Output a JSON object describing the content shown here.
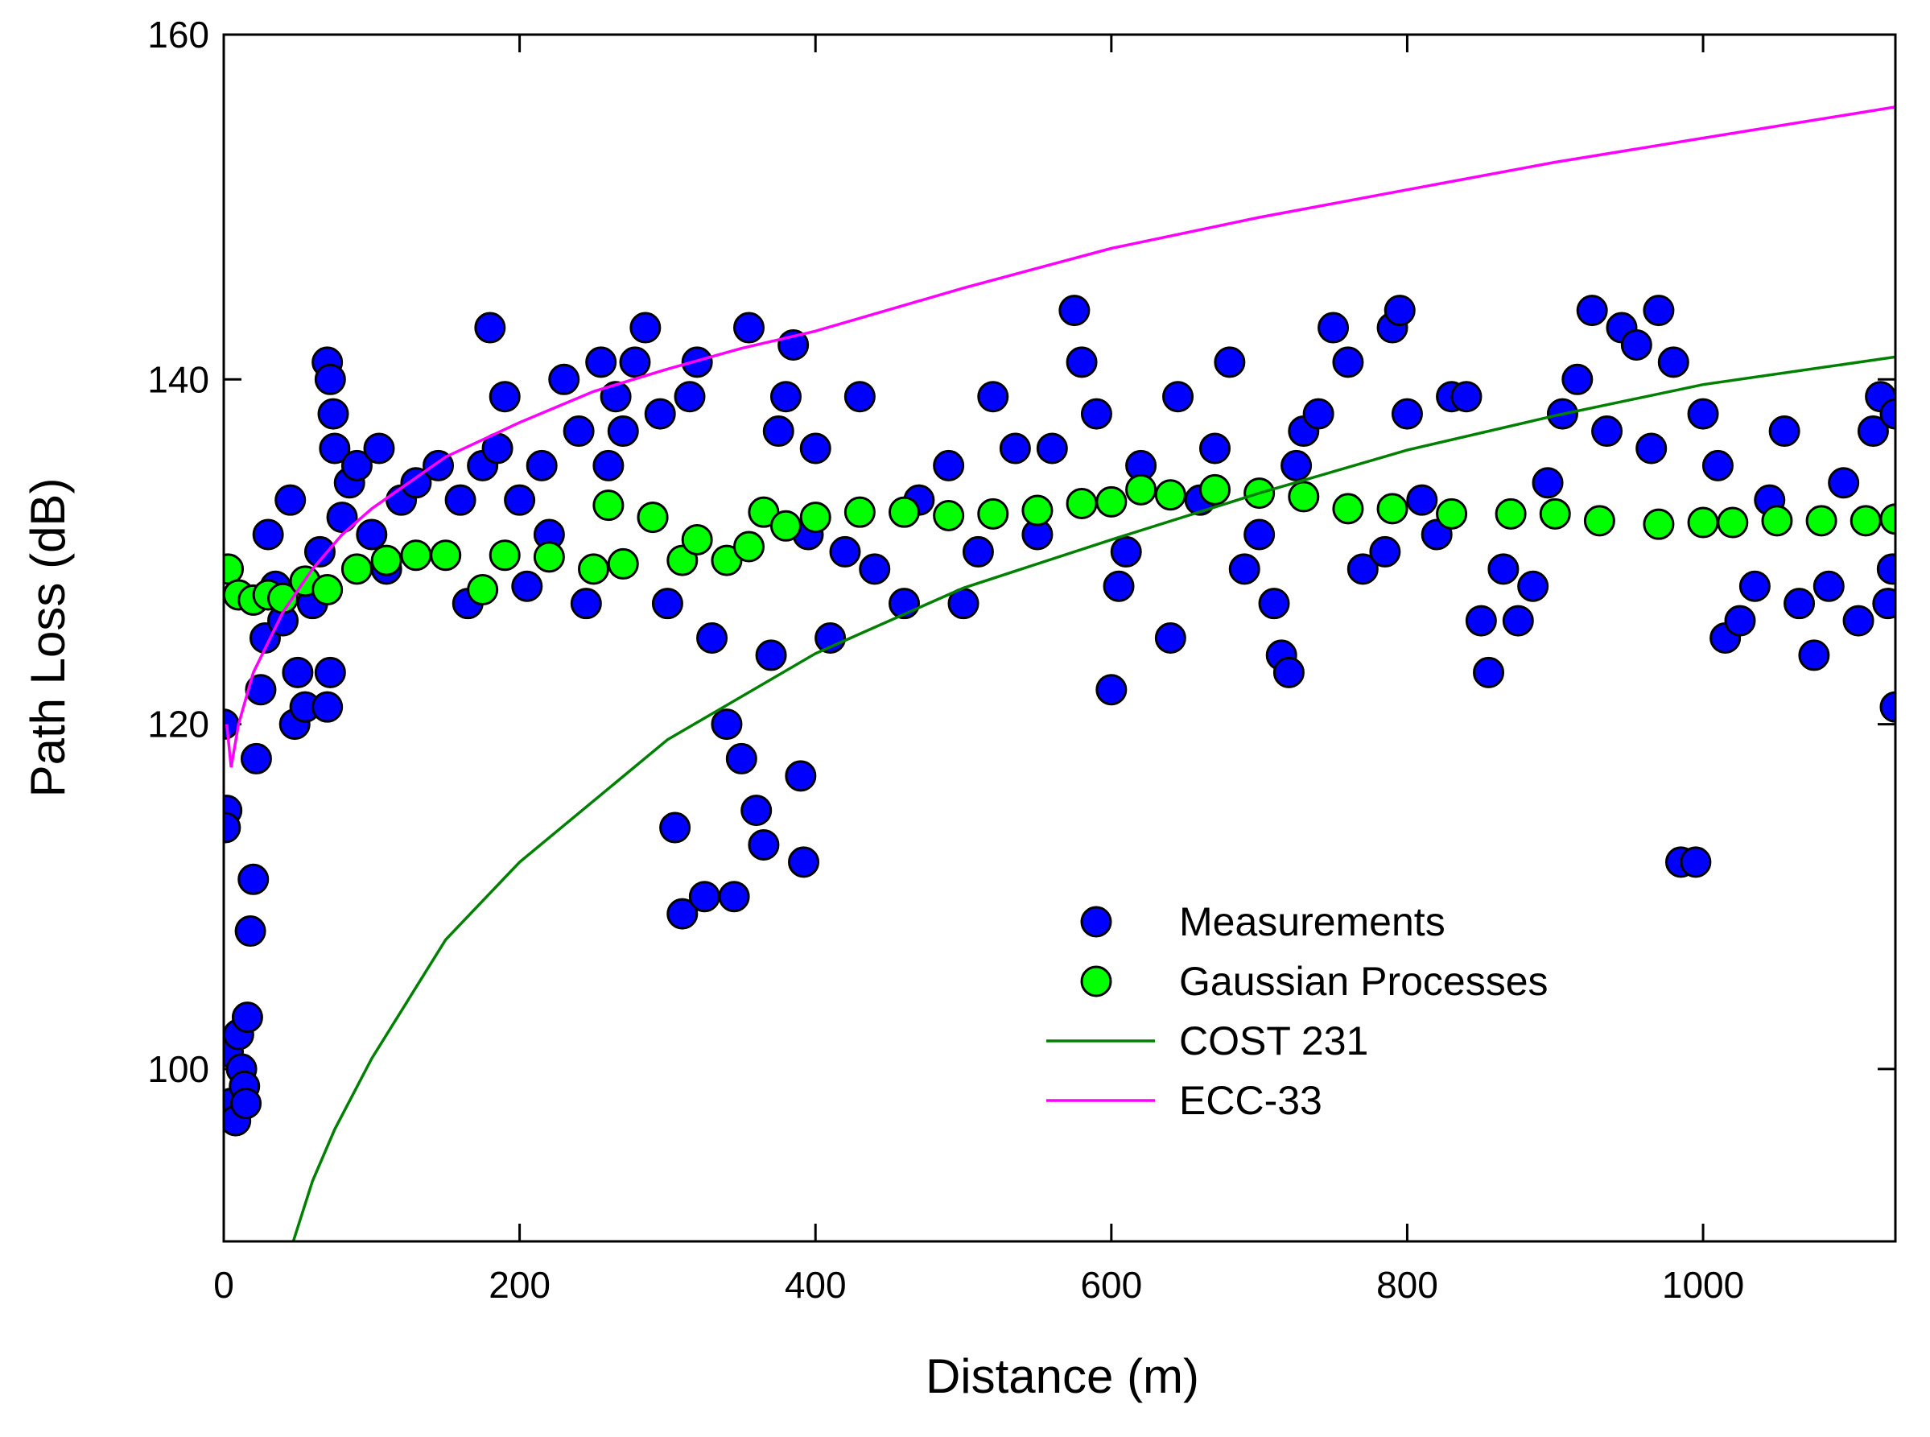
{
  "chart_data": {
    "type": "scatter",
    "xlabel": "Distance (m)",
    "ylabel": "Path Loss (dB)",
    "xlim": [
      0,
      1130
    ],
    "ylim": [
      90,
      160
    ],
    "xticks": [
      0,
      200,
      400,
      600,
      800,
      1000
    ],
    "yticks": [
      100,
      120,
      140,
      160
    ],
    "legend": "lower right",
    "series": [
      {
        "name": "Measurements",
        "type": "scatter",
        "color": "#0000ff",
        "x": [
          0,
          2,
          1,
          3,
          5,
          8,
          10,
          12,
          14,
          15,
          16,
          18,
          20,
          22,
          25,
          28,
          30,
          35,
          40,
          45,
          48,
          50,
          55,
          60,
          65,
          70,
          72,
          74,
          70,
          72,
          75,
          80,
          85,
          90,
          100,
          105,
          110,
          120,
          130,
          145,
          160,
          165,
          175,
          180,
          185,
          190,
          200,
          205,
          215,
          220,
          230,
          240,
          245,
          255,
          260,
          265,
          270,
          278,
          285,
          290,
          295,
          300,
          305,
          310,
          315,
          320,
          325,
          330,
          340,
          345,
          350,
          355,
          360,
          365,
          370,
          375,
          380,
          385,
          390,
          392,
          395,
          400,
          410,
          420,
          430,
          440,
          460,
          470,
          490,
          500,
          510,
          520,
          535,
          550,
          560,
          575,
          580,
          590,
          600,
          605,
          610,
          620,
          640,
          645,
          660,
          670,
          680,
          690,
          700,
          710,
          715,
          720,
          725,
          730,
          740,
          750,
          760,
          770,
          785,
          790,
          795,
          800,
          810,
          820,
          830,
          840,
          850,
          855,
          865,
          875,
          885,
          895,
          905,
          915,
          925,
          935,
          945,
          955,
          965,
          970,
          980,
          985,
          995,
          1000,
          1010,
          1015,
          1025,
          1035,
          1045,
          1055,
          1065,
          1075,
          1085,
          1095,
          1105,
          1115,
          1120,
          1125,
          1130,
          1130,
          1128
        ],
        "values": [
          120,
          115,
          114,
          101,
          98,
          97,
          102,
          100,
          99,
          98,
          103,
          108,
          111,
          118,
          122,
          125,
          131,
          128,
          126,
          133,
          120,
          123,
          121,
          127,
          130,
          141,
          140,
          138,
          121,
          123,
          136,
          132,
          134,
          135,
          131,
          136,
          129,
          133,
          134,
          135,
          133,
          127,
          135,
          143,
          136,
          139,
          133,
          128,
          135,
          131,
          140,
          137,
          127,
          141,
          135,
          139,
          137,
          141,
          143,
          132,
          138,
          127,
          114,
          109,
          139,
          141,
          110,
          125,
          120,
          110,
          118,
          143,
          115,
          113,
          124,
          137,
          139,
          142,
          117,
          112,
          131,
          136,
          125,
          130,
          139,
          129,
          127,
          133,
          135,
          127,
          130,
          139,
          136,
          131,
          136,
          144,
          141,
          138,
          122,
          128,
          130,
          135,
          125,
          139,
          133,
          136,
          141,
          129,
          131,
          127,
          124,
          123,
          135,
          137,
          138,
          143,
          141,
          129,
          130,
          143,
          144,
          138,
          133,
          131,
          139,
          139,
          126,
          123,
          129,
          126,
          128,
          134,
          138,
          140,
          144,
          137,
          143,
          142,
          136,
          144,
          141,
          112,
          112,
          138,
          135,
          125,
          126,
          128,
          133,
          137,
          127,
          124,
          128,
          134,
          126,
          137,
          139,
          127,
          121,
          138,
          129
        ]
      },
      {
        "name": "Gaussian Processes",
        "type": "scatter",
        "color": "#00ff00",
        "x": [
          3,
          10,
          20,
          30,
          40,
          55,
          70,
          90,
          110,
          130,
          150,
          175,
          190,
          220,
          250,
          260,
          270,
          290,
          310,
          320,
          340,
          355,
          365,
          380,
          400,
          430,
          460,
          490,
          520,
          550,
          580,
          600,
          620,
          640,
          670,
          700,
          730,
          760,
          790,
          830,
          870,
          900,
          930,
          970,
          1000,
          1020,
          1050,
          1080,
          1110,
          1130
        ],
        "values": [
          129,
          127.5,
          127.2,
          127.5,
          127.3,
          128.3,
          127.8,
          129,
          129.5,
          129.8,
          129.8,
          127.8,
          129.8,
          129.7,
          129,
          132.7,
          129.3,
          132,
          129.5,
          130.7,
          129.5,
          130.3,
          132.3,
          131.5,
          132,
          132.3,
          132.3,
          132.1,
          132.2,
          132.4,
          132.8,
          132.9,
          133.6,
          133.3,
          133.6,
          133.4,
          133.2,
          132.5,
          132.5,
          132.2,
          132.2,
          132.2,
          131.8,
          131.6,
          131.7,
          131.7,
          131.8,
          131.8,
          131.8,
          131.9
        ]
      },
      {
        "name": "COST 231",
        "type": "line",
        "color": "#008000",
        "x": [
          47,
          60,
          75,
          100,
          150,
          200,
          300,
          400,
          500,
          600,
          700,
          800,
          900,
          1000,
          1130
        ],
        "values": [
          90,
          93.5,
          96.5,
          100.6,
          107.5,
          112,
          119.1,
          124.1,
          127.9,
          130.7,
          133.4,
          135.9,
          137.9,
          139.7,
          141.3
        ]
      },
      {
        "name": "ECC-33",
        "type": "line",
        "color": "#ff00ff",
        "x": [
          2,
          5,
          10,
          20,
          40,
          60,
          80,
          100,
          150,
          200,
          250,
          300,
          350,
          400,
          500,
          600,
          700,
          800,
          900,
          1000,
          1130
        ],
        "values": [
          120,
          117.5,
          120,
          123,
          126.5,
          129,
          131,
          132.5,
          135.5,
          137.5,
          139.3,
          140.6,
          141.8,
          142.8,
          145.3,
          147.6,
          149.4,
          151,
          152.6,
          154,
          155.8
        ]
      }
    ]
  }
}
